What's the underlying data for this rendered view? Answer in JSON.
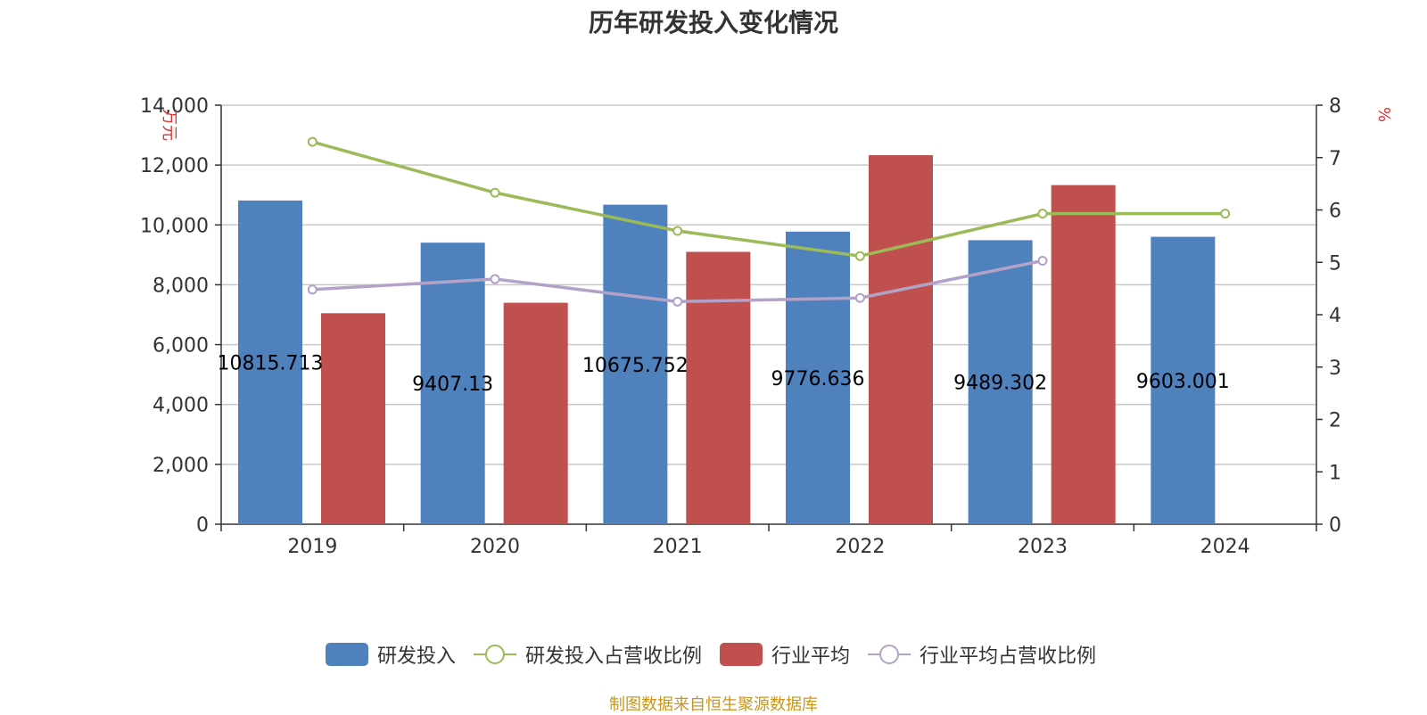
{
  "chart_data": {
    "type": "bar",
    "title": "历年研发投入变化情况",
    "categories": [
      "2019",
      "2020",
      "2021",
      "2022",
      "2023",
      "2024"
    ],
    "y_left": {
      "unit": "万元",
      "range": [
        0,
        14000
      ],
      "ticks": [
        "0",
        "2,000",
        "4,000",
        "6,000",
        "8,000",
        "10,000",
        "12,000",
        "14,000"
      ]
    },
    "y_right": {
      "unit": "%",
      "range": [
        0,
        8
      ],
      "ticks": [
        "0",
        "1",
        "2",
        "3",
        "4",
        "5",
        "6",
        "7",
        "8"
      ]
    },
    "grid": true,
    "legend_position": "bottom",
    "series": [
      {
        "name": "研发投入",
        "kind": "bar",
        "axis": "left",
        "color": "#4f81bd",
        "values": [
          10815.713,
          9407.13,
          10675.752,
          9776.636,
          9489.302,
          9603.001
        ],
        "labels": [
          "10815.713",
          "9407.13",
          "10675.752",
          "9776.636",
          "9489.302",
          "9603.001"
        ]
      },
      {
        "name": "研发投入占营收比例",
        "kind": "line",
        "axis": "right",
        "color": "#9bbb59",
        "values": [
          7.3,
          6.33,
          5.6,
          5.12,
          5.93,
          5.93
        ]
      },
      {
        "name": "行业平均",
        "kind": "bar",
        "axis": "left",
        "color": "#c0504d",
        "values": [
          7050,
          7400,
          9100,
          12330,
          11330,
          null
        ]
      },
      {
        "name": "行业平均占营收比例",
        "kind": "line",
        "axis": "right",
        "color": "#b3a2c7",
        "values": [
          4.48,
          4.68,
          4.25,
          4.32,
          5.03,
          null
        ]
      }
    ]
  },
  "footer": {
    "source": "制图数据来自恒生聚源数据库"
  }
}
